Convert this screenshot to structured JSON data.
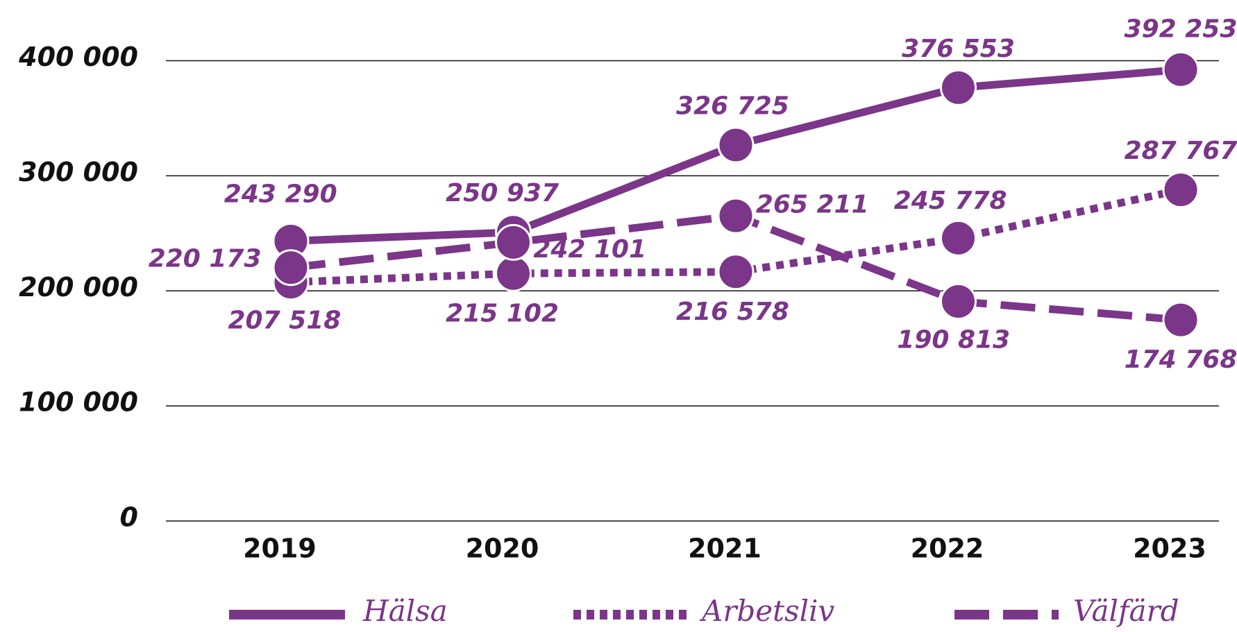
{
  "chart_data": {
    "type": "line",
    "categories": [
      "2019",
      "2020",
      "2021",
      "2022",
      "2023"
    ],
    "series": [
      {
        "name": "Hälsa",
        "color": "#7b3589",
        "dash": "solid",
        "values": [
          243290,
          250937,
          326725,
          376553,
          392253
        ],
        "value_labels": [
          "243 290",
          "250 937",
          "326 725",
          "376 553",
          "392 253"
        ]
      },
      {
        "name": "Arbetsliv",
        "color": "#7b3589",
        "dash": "dotted",
        "values": [
          207518,
          215102,
          216578,
          245778,
          287767
        ],
        "value_labels": [
          "207 518",
          "215 102",
          "216 578",
          "245 778",
          "287 767"
        ]
      },
      {
        "name": "Välfärd",
        "color": "#7b3589",
        "dash": "dashed",
        "values": [
          220173,
          242101,
          265211,
          190813,
          174768
        ],
        "value_labels": [
          "220 173",
          "242 101",
          "265 211",
          "190 813",
          "174 768"
        ]
      }
    ],
    "ylim": [
      0,
      400000
    ],
    "yticks": [
      0,
      {
        "value": 100000,
        "label": "100 000"
      },
      {
        "value": 200000,
        "label": "200 000"
      },
      {
        "value": 300000,
        "label": "300 000"
      },
      {
        "value": 400000,
        "label": "400 000"
      }
    ],
    "grid": true,
    "legend": "bottom"
  }
}
